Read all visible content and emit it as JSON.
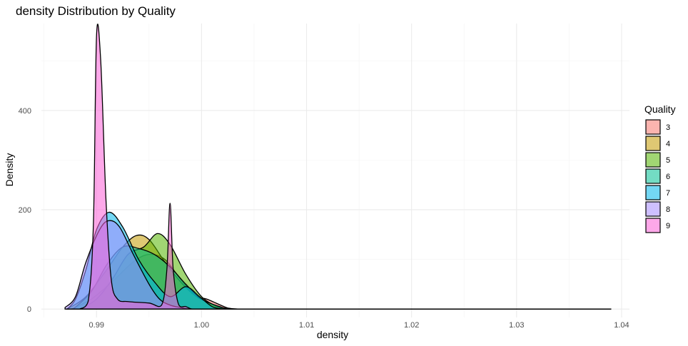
{
  "chart_data": {
    "type": "area",
    "title": "density Distribution by Quality",
    "xlabel": "density",
    "ylabel": "Density",
    "xlim": [
      0.98475,
      1.04075
    ],
    "ylim": [
      -17,
      575
    ],
    "x_ticks": [
      0.99,
      1.0,
      1.01,
      1.02,
      1.03,
      1.04
    ],
    "x_tick_labels": [
      "0.99",
      "1.00",
      "1.01",
      "1.02",
      "1.03",
      "1.04"
    ],
    "y_ticks": [
      0,
      200,
      400
    ],
    "y_tick_labels": [
      "0",
      "200",
      "400"
    ],
    "grid": true,
    "legend": {
      "title": "Quality",
      "position": "right"
    },
    "series": [
      {
        "name": "3",
        "color": "#F8766D",
        "points": [
          [
            0.9876,
            0
          ],
          [
            0.9895,
            20
          ],
          [
            0.9915,
            55
          ],
          [
            0.9935,
            95
          ],
          [
            0.995,
            110
          ],
          [
            0.9965,
            100
          ],
          [
            0.998,
            60
          ],
          [
            0.9995,
            25
          ],
          [
            1.0005,
            20
          ],
          [
            1.0025,
            2
          ],
          [
            1.0035,
            0
          ]
        ]
      },
      {
        "name": "4",
        "color": "#C49A00",
        "points": [
          [
            0.9872,
            0
          ],
          [
            0.989,
            25
          ],
          [
            0.991,
            80
          ],
          [
            0.9925,
            125
          ],
          [
            0.9938,
            148
          ],
          [
            0.995,
            140
          ],
          [
            0.9965,
            95
          ],
          [
            0.998,
            55
          ],
          [
            0.9995,
            25
          ],
          [
            1.0015,
            5
          ],
          [
            1.0025,
            0
          ]
        ]
      },
      {
        "name": "5",
        "color": "#53B400",
        "points": [
          [
            0.9885,
            0
          ],
          [
            0.99,
            20
          ],
          [
            0.9915,
            60
          ],
          [
            0.993,
            110
          ],
          [
            0.9945,
            125
          ],
          [
            0.9958,
            152
          ],
          [
            0.997,
            130
          ],
          [
            0.9985,
            70
          ],
          [
            1.0,
            25
          ],
          [
            1.0015,
            5
          ],
          [
            1.0025,
            0
          ]
        ]
      },
      {
        "name": "6",
        "color": "#00C094",
        "points": [
          [
            0.9878,
            0
          ],
          [
            0.9895,
            35
          ],
          [
            0.991,
            90
          ],
          [
            0.9925,
            125
          ],
          [
            0.994,
            122
          ],
          [
            0.9955,
            110
          ],
          [
            0.997,
            85
          ],
          [
            0.9985,
            50
          ],
          [
            1.0,
            20
          ],
          [
            1.002,
            3
          ],
          [
            1.0028,
            0
          ]
        ]
      },
      {
        "name": "7",
        "color": "#00B6EB",
        "points": [
          [
            0.9872,
            0
          ],
          [
            0.988,
            20
          ],
          [
            0.989,
            80
          ],
          [
            0.99,
            160
          ],
          [
            0.9912,
            195
          ],
          [
            0.9925,
            165
          ],
          [
            0.994,
            100
          ],
          [
            0.9955,
            55
          ],
          [
            0.997,
            25
          ],
          [
            0.9985,
            45
          ],
          [
            0.9998,
            25
          ],
          [
            1.001,
            5
          ],
          [
            1.002,
            0
          ]
        ]
      },
      {
        "name": "8",
        "color": "#A58AFF",
        "points": [
          [
            0.987,
            3
          ],
          [
            0.988,
            25
          ],
          [
            0.989,
            95
          ],
          [
            0.9903,
            160
          ],
          [
            0.9912,
            178
          ],
          [
            0.9922,
            165
          ],
          [
            0.9935,
            110
          ],
          [
            0.995,
            50
          ],
          [
            0.996,
            20
          ],
          [
            0.997,
            8
          ],
          [
            0.998,
            3
          ],
          [
            0.9985,
            1
          ],
          [
            0.9992,
            0
          ]
        ]
      },
      {
        "name": "9",
        "color": "#FB61D7",
        "points": [
          [
            0.9884,
            0
          ],
          [
            0.9892,
            15
          ],
          [
            0.9897,
            170
          ],
          [
            0.99,
            550
          ],
          [
            0.9904,
            500
          ],
          [
            0.9909,
            220
          ],
          [
            0.9914,
            60
          ],
          [
            0.992,
            20
          ],
          [
            0.993,
            15
          ],
          [
            0.995,
            12
          ],
          [
            0.9962,
            8
          ],
          [
            0.9967,
            80
          ],
          [
            0.997,
            213
          ],
          [
            0.9973,
            80
          ],
          [
            0.9978,
            10
          ],
          [
            0.9985,
            5
          ],
          [
            0.999,
            0
          ]
        ]
      }
    ],
    "flat_tail": {
      "x_from": 0.9876,
      "x_to": 1.039,
      "y": 0
    }
  }
}
